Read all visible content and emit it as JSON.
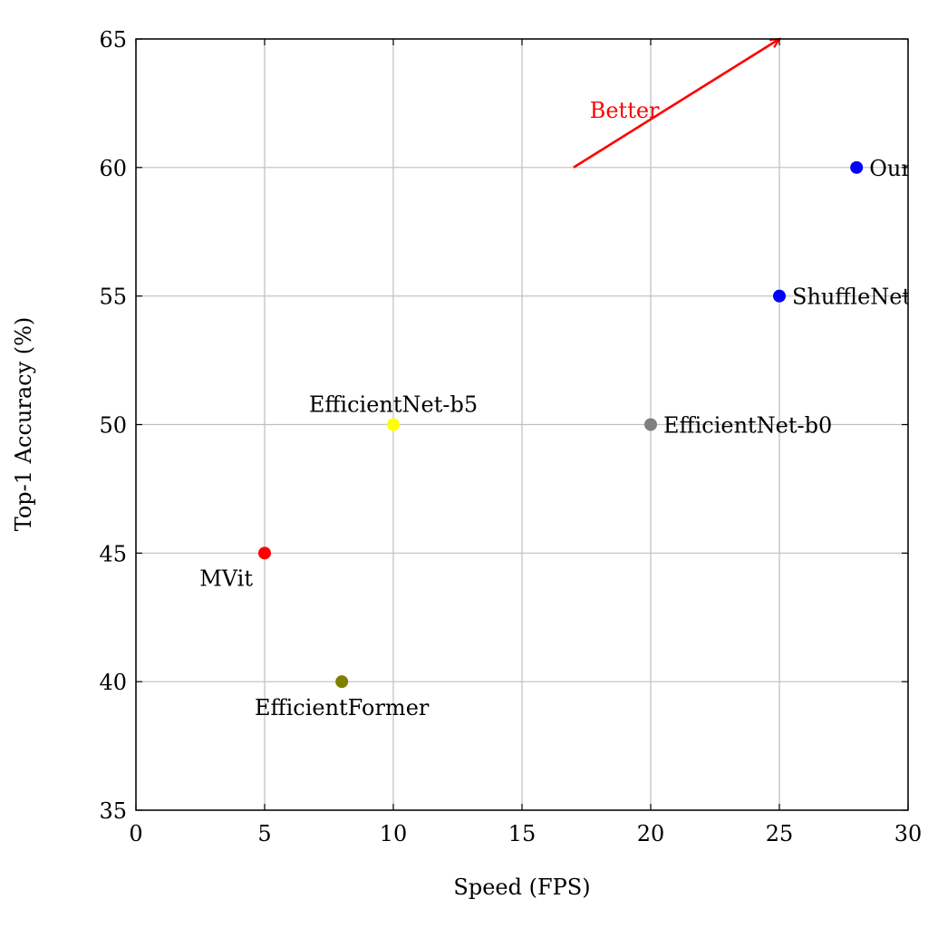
{
  "chart_data": {
    "type": "scatter",
    "title": "",
    "xlabel": "Speed (FPS)",
    "ylabel": "Top-1 Accuracy (%)",
    "xlim": [
      0,
      30
    ],
    "ylim": [
      35,
      65
    ],
    "xticks": [
      0,
      5,
      10,
      15,
      20,
      25,
      30
    ],
    "yticks": [
      35,
      40,
      45,
      50,
      55,
      60,
      65
    ],
    "grid": true,
    "legend": "none",
    "points": [
      {
        "label": "Ours",
        "x": 28,
        "y": 60,
        "color": "#0000ff",
        "label_position": "right"
      },
      {
        "label": "ShuffleNet",
        "x": 25,
        "y": 55,
        "color": "#0000ff",
        "label_position": "right"
      },
      {
        "label": "EfficientNet-b0",
        "x": 20,
        "y": 50,
        "color": "#808080",
        "label_position": "right"
      },
      {
        "label": "EfficientNet-b5",
        "x": 10,
        "y": 50,
        "color": "#ffff00",
        "label_position": "above"
      },
      {
        "label": "MVit",
        "x": 5,
        "y": 45,
        "color": "#ff0000",
        "label_position": "below-left"
      },
      {
        "label": "EfficientFormer",
        "x": 8,
        "y": 40,
        "color": "#808000",
        "label_position": "below"
      }
    ],
    "annotations": [
      {
        "text": "Better",
        "color": "#ff0000",
        "arrow_from": [
          17,
          60
        ],
        "arrow_to": [
          25,
          65
        ]
      }
    ]
  }
}
